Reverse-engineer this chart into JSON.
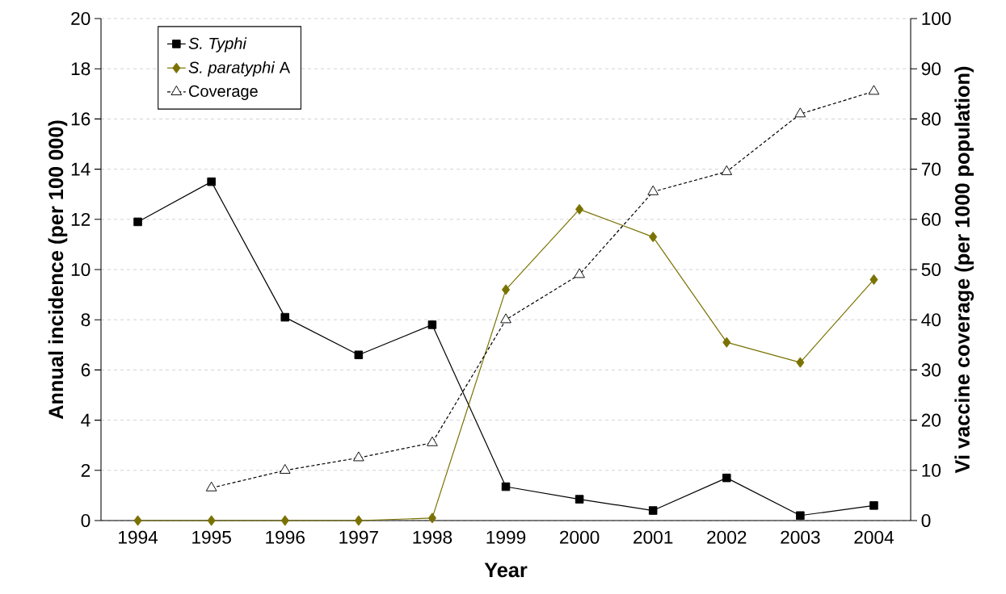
{
  "chart_data": {
    "type": "line",
    "xlabel": "Year",
    "ylabel": "Annual incidence (per 100 000)",
    "y2label": "Vi vaccine coverage (per 1000 population)",
    "categories": [
      "1994",
      "1995",
      "1996",
      "1997",
      "1998",
      "1999",
      "2000",
      "2001",
      "2002",
      "2003",
      "2004"
    ],
    "series": [
      {
        "name": "*S. Typhi*",
        "color": "#000000",
        "marker": "square",
        "line_style": "solid",
        "values": [
          11.9,
          13.5,
          8.1,
          6.6,
          7.8,
          1.35,
          0.85,
          0.4,
          1.7,
          0.2,
          0.6
        ]
      },
      {
        "name": "*S. paratyphi* A",
        "color": "#7a7200",
        "marker": "diamond",
        "line_style": "solid",
        "values": [
          0,
          0,
          0,
          0,
          0.1,
          9.2,
          12.4,
          11.3,
          7.1,
          6.3,
          9.6
        ]
      },
      {
        "name": "Coverage",
        "color": "#000000",
        "marker": "triangle",
        "line_style": "dashed",
        "axis": "y2",
        "values": [
          null,
          6.5,
          10,
          12.5,
          15.5,
          40,
          49,
          65.5,
          69.5,
          81,
          85.5
        ]
      }
    ],
    "ylim": [
      0,
      20
    ],
    "yticks": [
      0,
      2,
      4,
      6,
      8,
      10,
      12,
      14,
      16,
      18,
      20
    ],
    "y2lim": [
      0,
      100
    ],
    "y2ticks": [
      0,
      10,
      20,
      30,
      40,
      50,
      60,
      70,
      80,
      90,
      100
    ],
    "grid": "y",
    "legend": "top left"
  }
}
